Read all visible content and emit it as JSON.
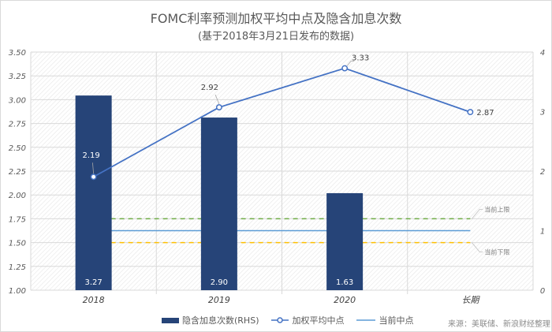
{
  "title": "FOMC利率预测加权平均中点及隐含加息次数",
  "subtitle": "(基于2018年3月21日发布的数据)",
  "source": "来源：美联储、新浪财经整理",
  "legend": {
    "bar": "隐含加息次数(RHS)",
    "line": "加权平均中点",
    "flat": "当前中点"
  },
  "annotations": {
    "upper": "当前上限",
    "lower": "当前下限"
  },
  "colors": {
    "bar": "#264478",
    "line": "#4472c4",
    "current_mid": "#5b9bd5",
    "upper": "#70ad47",
    "lower": "#ffc000"
  },
  "chart_data": {
    "type": "bar",
    "title": "FOMC利率预测加权平均中点及隐含加息次数",
    "subtitle": "(基于2018年3月21日发布的数据)",
    "categories": [
      "2018",
      "2019",
      "2020",
      "长期"
    ],
    "left_axis": {
      "ylim": [
        1.0,
        3.5
      ],
      "ticks": [
        "1.00",
        "1.25",
        "1.50",
        "1.75",
        "2.00",
        "2.25",
        "2.50",
        "2.75",
        "3.00",
        "3.25",
        "3.50"
      ]
    },
    "right_axis": {
      "ylim": [
        0,
        4
      ],
      "ticks": [
        "0",
        "1",
        "2",
        "3",
        "4"
      ]
    },
    "series": [
      {
        "name": "隐含加息次数(RHS)",
        "type": "bar",
        "axis": "right",
        "values": [
          3.27,
          2.9,
          1.63,
          null
        ],
        "labels": [
          "3.27",
          "2.90",
          "1.63",
          ""
        ]
      },
      {
        "name": "加权平均中点",
        "type": "line",
        "axis": "left",
        "values": [
          2.19,
          2.92,
          3.33,
          2.87
        ],
        "labels": [
          "2.19",
          "2.92",
          "3.33",
          "2.87"
        ]
      },
      {
        "name": "当前中点",
        "type": "line",
        "axis": "left",
        "values": [
          1.625,
          1.625,
          1.625,
          1.625
        ]
      },
      {
        "name": "当前上限",
        "type": "line",
        "style": "dashed",
        "axis": "left",
        "values": [
          1.75,
          1.75,
          1.75,
          1.75
        ]
      },
      {
        "name": "当前下限",
        "type": "line",
        "style": "dashed",
        "axis": "left",
        "values": [
          1.5,
          1.5,
          1.5,
          1.5
        ]
      }
    ],
    "grid": true,
    "legend_position": "bottom"
  }
}
